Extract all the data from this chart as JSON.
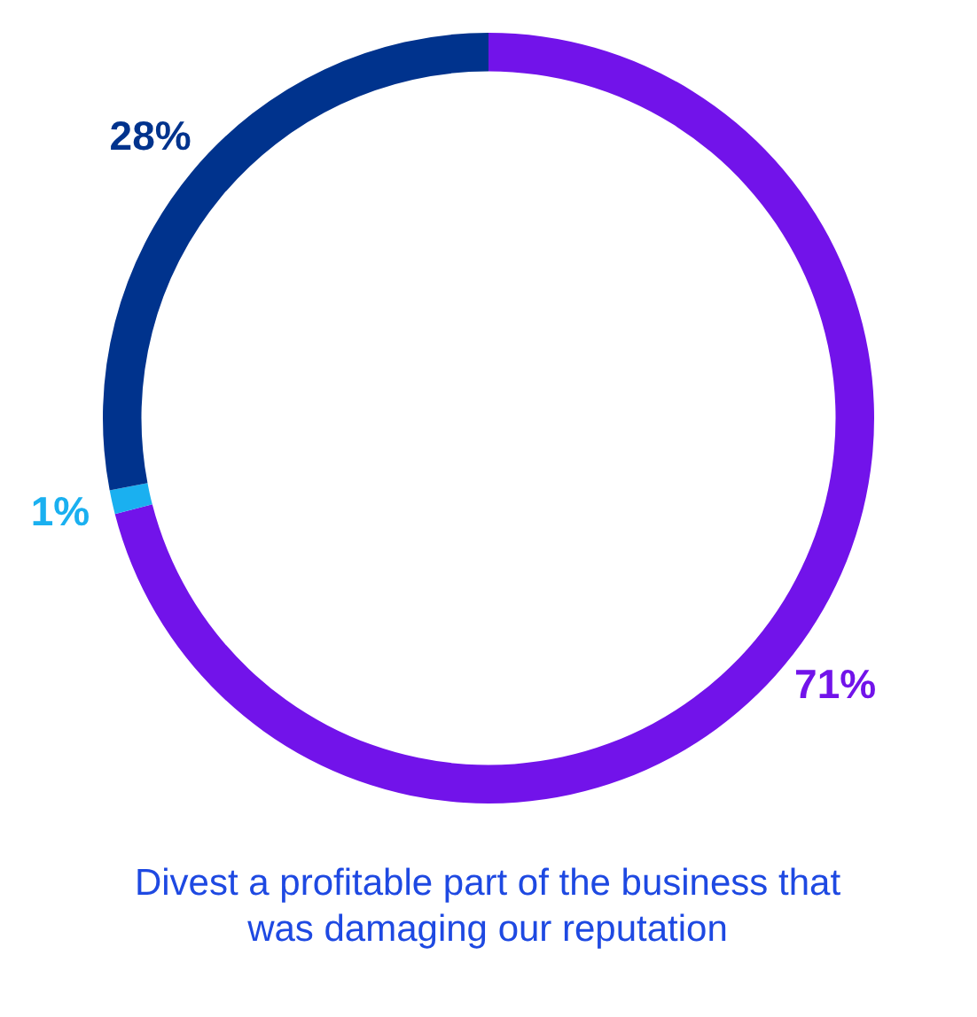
{
  "chart_data": {
    "type": "donut",
    "title": "Divest a profitable part of the business that was damaging our reputation",
    "categories": [
      null,
      null,
      null
    ],
    "values": [
      71,
      1,
      28
    ],
    "colors": [
      "#7213ea",
      "#1ab0f0",
      "#00338d"
    ],
    "value_labels": [
      "71%",
      "1%",
      "28%"
    ],
    "legend": false
  }
}
